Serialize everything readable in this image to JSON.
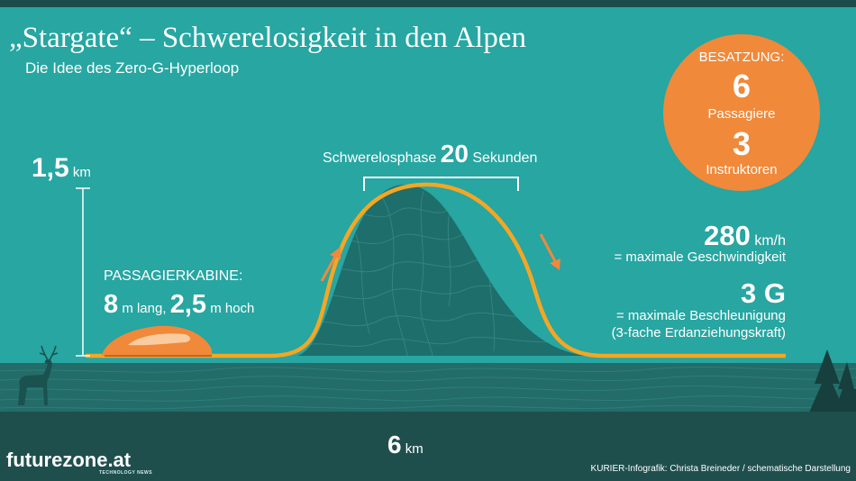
{
  "title": "„Stargate“ – Schwerelosigkeit in den Alpen",
  "subtitle": "Die Idee des Zero-G-Hyperloop",
  "crew": {
    "heading": "BESATZUNG:",
    "passengers_count": "6",
    "passengers_label": "Passagiere",
    "instructors_count": "3",
    "instructors_label": "Instruktoren"
  },
  "phase": {
    "label": "Schwerelosphase",
    "value": "20",
    "unit": "Sekunden"
  },
  "altitude": {
    "value": "1,5",
    "unit": "km"
  },
  "cabin": {
    "heading": "PASSAGIERKABINE:",
    "length_value": "8",
    "length_unit": "m lang,",
    "height_value": "2,5",
    "height_unit": "m hoch"
  },
  "speed": {
    "value": "280",
    "unit": "km/h",
    "label": "= maximale Geschwindigkeit"
  },
  "acceleration": {
    "value": "3 G",
    "label": "= maximale Beschleunigung",
    "note": "(3-fache Erdanziehungskraft)"
  },
  "distance": {
    "value": "6",
    "unit": "km"
  },
  "branding": {
    "logo": "futurezone.at",
    "logo_sub": "TECHNOLOGY NEWS"
  },
  "credit": "KURIER-Infografik: Christa Breineder / schematische Darstellung",
  "colors": {
    "background": "#27a6a2",
    "accent": "#f0893a",
    "track": "#f5a623",
    "footer": "#1f4f4d",
    "terrain": "#1e6e6b"
  },
  "icons": [
    "deer-icon",
    "pine-tree-icon",
    "up-arrow-icon",
    "down-arrow-icon",
    "cabin-icon",
    "mountain-icon"
  ]
}
